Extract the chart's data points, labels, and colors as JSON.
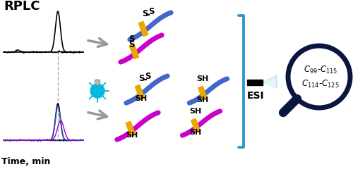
{
  "bg_color": "#ffffff",
  "rplc_label": "RPLC",
  "time_label": "Time, min",
  "esi_label": "ESI",
  "mag_line1": "$C_{99}$-$C_{115}$",
  "mag_line2": "$C_{114}$-$C_{125}$",
  "blue_color": "#4466cc",
  "magenta_color": "#cc00cc",
  "gold_color": "#e8a800",
  "dark_navy": "#0a1540",
  "gray_color": "#999999",
  "cyan_color": "#00bbdd",
  "bracket_blue": "#3399cc",
  "esi_tip_color": "#aaddee"
}
